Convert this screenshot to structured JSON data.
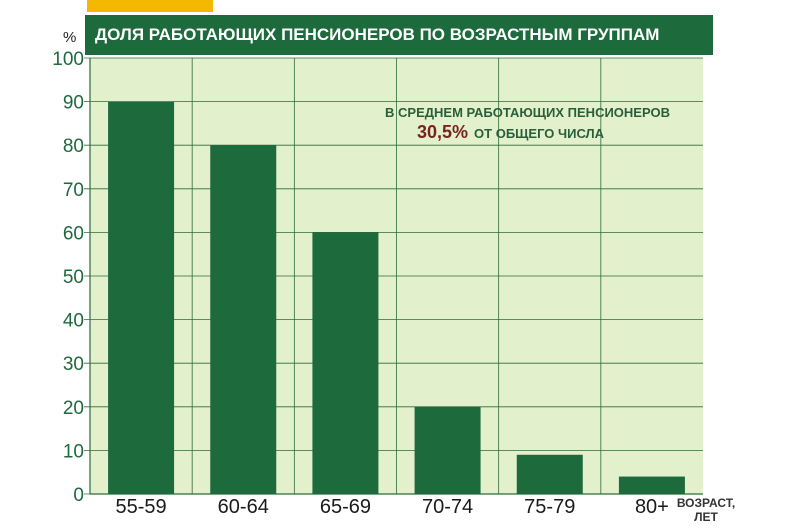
{
  "title": "ДОЛЯ РАБОТАЮЩИХ ПЕНСИОНЕРОВ ПО ВОЗРАСТНЫМ ГРУППАМ",
  "unit": "%",
  "annotation": {
    "line1": "В СРЕДНЕМ РАБОТАЮЩИХ ПЕНСИОНЕРОВ",
    "value": "30,5%",
    "line2": "ОТ ОБЩЕГО ЧИСЛА"
  },
  "xaxis_label": "ВОЗРАСТ, ЛЕТ",
  "colors": {
    "bar": "#1d6a3c",
    "plot_bg": "#e2f0cc",
    "grid": "#2f6b3a",
    "accent": "#f5b800",
    "annotation_value": "#7a2222"
  },
  "chart_data": {
    "type": "bar",
    "title": "ДОЛЯ РАБОТАЮЩИХ ПЕНСИОНЕРОВ ПО ВОЗРАСТНЫМ ГРУППАМ",
    "categories": [
      "55-59",
      "60-64",
      "65-69",
      "70-74",
      "75-79",
      "80+"
    ],
    "values": [
      90,
      80,
      60,
      20,
      9,
      4
    ],
    "xlabel": "ВОЗРАСТ, ЛЕТ",
    "ylabel": "%",
    "ylim": [
      0,
      100
    ],
    "yticks": [
      0,
      10,
      20,
      30,
      40,
      50,
      60,
      70,
      80,
      90,
      100
    ],
    "grid": true,
    "legend": "none"
  }
}
